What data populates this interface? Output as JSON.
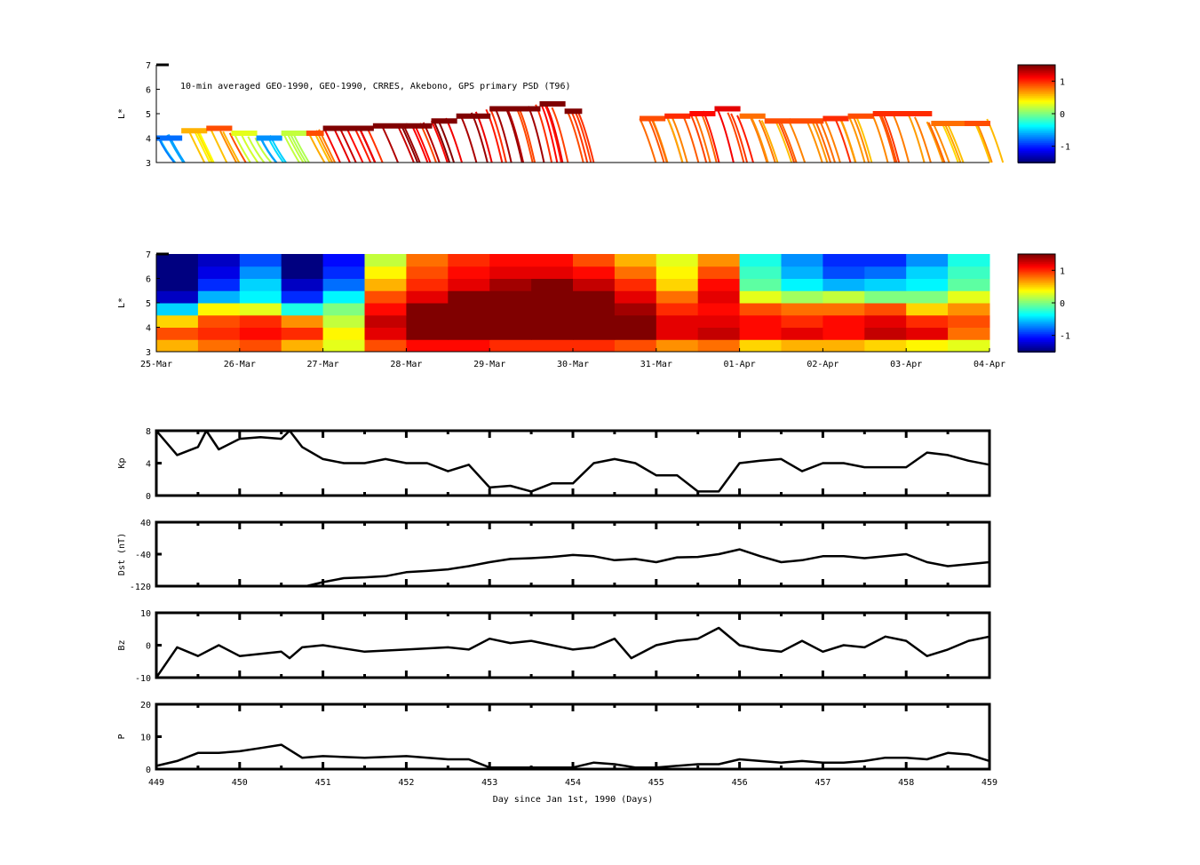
{
  "chart_data": [
    {
      "type": "scatter",
      "id": "psd-obs",
      "title": "10-min averaged GEO-1990, GEO-1990, CRRES, Akebono, GPS  primary PSD (T96)",
      "ylabel": "L*",
      "ylim": [
        3,
        7
      ],
      "yticks": [
        "3",
        "4",
        "5",
        "6",
        "7"
      ],
      "xlim": [
        449,
        459
      ],
      "trace": [
        [
          449.0,
          4.0,
          -0.8
        ],
        [
          449.3,
          4.3,
          0.6
        ],
        [
          449.6,
          4.4,
          0.9
        ],
        [
          449.9,
          4.2,
          0.3
        ],
        [
          450.2,
          4.0,
          -0.7
        ],
        [
          450.5,
          4.2,
          0.2
        ],
        [
          450.8,
          4.2,
          0.9
        ],
        [
          451.0,
          4.4,
          1.5
        ],
        [
          451.3,
          4.4,
          1.5
        ],
        [
          451.6,
          4.5,
          1.5
        ],
        [
          452.0,
          4.5,
          1.5
        ],
        [
          452.3,
          4.7,
          1.5
        ],
        [
          452.6,
          4.9,
          1.5
        ],
        [
          453.0,
          5.2,
          1.5
        ],
        [
          453.3,
          5.2,
          1.5
        ],
        [
          453.6,
          5.4,
          1.5
        ],
        [
          453.9,
          5.1,
          1.5
        ],
        [
          454.1,
          5.1,
          1.5
        ],
        [
          454.8,
          4.8,
          0.9
        ],
        [
          455.1,
          4.9,
          1.0
        ],
        [
          455.4,
          5.0,
          1.1
        ],
        [
          455.7,
          5.2,
          1.2
        ],
        [
          456.0,
          4.9,
          0.8
        ],
        [
          456.3,
          4.7,
          0.9
        ],
        [
          456.6,
          4.7,
          0.9
        ],
        [
          457.0,
          4.8,
          1.0
        ],
        [
          457.3,
          4.9,
          0.9
        ],
        [
          457.6,
          5.0,
          1.0
        ],
        [
          458.0,
          5.0,
          1.0
        ],
        [
          458.3,
          4.6,
          0.8
        ],
        [
          458.7,
          4.6,
          0.9
        ],
        [
          459.0,
          4.8,
          0.5
        ]
      ],
      "colorbar": {
        "ticks": [
          "1",
          "0",
          "-1"
        ],
        "clim": [
          -1.5,
          1.5
        ]
      }
    },
    {
      "type": "heatmap",
      "id": "psd-reanalysis",
      "ylabel": "L*",
      "ylim": [
        3,
        7
      ],
      "yticks": [
        "3",
        "4",
        "5",
        "6",
        "7"
      ],
      "xtick_labels": [
        "25-Mar",
        "26-Mar",
        "27-Mar",
        "28-Mar",
        "29-Mar",
        "30-Mar",
        "31-Mar",
        "01-Apr",
        "02-Apr",
        "03-Apr",
        "04-Apr"
      ],
      "x_bins_per_day": 2,
      "l_bins": [
        3.25,
        3.75,
        4.25,
        4.75,
        5.25,
        5.75,
        6.25,
        6.75
      ],
      "values": [
        [
          0.6,
          0.8,
          0.9,
          0.6,
          0.3,
          0.9,
          1.1,
          1.1,
          1.0,
          1.0,
          1.0,
          0.9,
          0.7,
          0.8,
          0.5,
          0.6,
          0.6,
          0.5,
          0.4,
          0.3
        ],
        [
          0.9,
          1.0,
          1.1,
          1.0,
          0.4,
          1.2,
          1.5,
          1.5,
          1.5,
          1.5,
          1.5,
          1.5,
          1.2,
          1.3,
          1.1,
          1.2,
          1.1,
          1.3,
          1.2,
          0.8
        ],
        [
          0.5,
          0.9,
          1.0,
          0.7,
          0.2,
          1.3,
          1.5,
          1.5,
          1.5,
          1.5,
          1.5,
          1.5,
          1.2,
          1.2,
          1.1,
          1.0,
          1.1,
          1.2,
          1.0,
          0.9
        ],
        [
          -0.5,
          0.4,
          0.3,
          -0.3,
          0.0,
          1.1,
          1.5,
          1.5,
          1.5,
          1.5,
          1.5,
          1.4,
          1.0,
          1.1,
          0.9,
          0.8,
          0.8,
          0.9,
          0.5,
          0.7
        ],
        [
          -1.3,
          -0.6,
          -0.4,
          -1.0,
          -0.4,
          0.9,
          1.2,
          1.5,
          1.5,
          1.5,
          1.5,
          1.2,
          0.8,
          1.2,
          0.3,
          0.1,
          0.2,
          0.0,
          0.0,
          0.3
        ],
        [
          -1.5,
          -1.0,
          -0.5,
          -1.3,
          -0.8,
          0.6,
          1.0,
          1.2,
          1.4,
          1.5,
          1.3,
          1.0,
          0.5,
          1.1,
          -0.1,
          -0.4,
          -0.6,
          -0.5,
          -0.4,
          -0.1
        ],
        [
          -1.5,
          -1.2,
          -0.7,
          -1.5,
          -1.0,
          0.4,
          0.9,
          1.1,
          1.2,
          1.2,
          1.1,
          0.8,
          0.4,
          0.9,
          -0.2,
          -0.6,
          -0.9,
          -0.8,
          -0.5,
          -0.2
        ],
        [
          -1.5,
          -1.3,
          -0.9,
          -1.5,
          -1.1,
          0.2,
          0.8,
          1.0,
          1.1,
          1.1,
          0.9,
          0.6,
          0.3,
          0.7,
          -0.3,
          -0.7,
          -1.0,
          -1.0,
          -0.7,
          -0.3
        ]
      ],
      "colorbar": {
        "ticks": [
          "1",
          "0",
          "-1"
        ],
        "clim": [
          -1.5,
          1.5
        ]
      }
    },
    {
      "type": "line",
      "id": "kp",
      "ylabel": "Kp",
      "ylim": [
        0,
        8
      ],
      "yticks": [
        "0",
        "4",
        "8"
      ],
      "x": [
        449,
        449.25,
        449.5,
        449.6,
        449.75,
        450,
        450.25,
        450.5,
        450.6,
        450.75,
        451,
        451.25,
        451.5,
        451.75,
        452,
        452.25,
        452.5,
        452.75,
        453,
        453.25,
        453.5,
        453.75,
        454,
        454.25,
        454.5,
        454.75,
        455,
        455.25,
        455.5,
        455.75,
        456,
        456.25,
        456.5,
        456.75,
        457,
        457.25,
        457.5,
        457.75,
        458,
        458.25,
        458.5,
        458.75,
        459
      ],
      "y": [
        8,
        5,
        6,
        8,
        5.7,
        7,
        7.2,
        7,
        8,
        6,
        4.5,
        4,
        4,
        4.5,
        4,
        4,
        3,
        3.8,
        1,
        1.2,
        0.5,
        1.5,
        1.5,
        4,
        4.5,
        4,
        2.5,
        2.5,
        0.5,
        0.5,
        4,
        4.3,
        4.5,
        3,
        4,
        4,
        3.5,
        3.5,
        3.5,
        5.3,
        5,
        4.3,
        3.8
      ]
    },
    {
      "type": "line",
      "id": "dst",
      "ylabel": "Dst (nT)",
      "ylim": [
        -120,
        40
      ],
      "yticks": [
        "-120",
        "-40",
        "40"
      ],
      "x": [
        449,
        450.8,
        451,
        451.25,
        451.5,
        451.75,
        452,
        452.25,
        452.5,
        452.75,
        453,
        453.25,
        453.5,
        453.75,
        454,
        454.25,
        454.5,
        454.75,
        455,
        455.25,
        455.5,
        455.75,
        456,
        456.25,
        456.5,
        456.75,
        457,
        457.25,
        457.5,
        457.75,
        458,
        458.25,
        458.5,
        458.75,
        459
      ],
      "y": [
        -120,
        -120,
        -110,
        -100,
        -98,
        -95,
        -85,
        -82,
        -78,
        -70,
        -60,
        -52,
        -50,
        -47,
        -42,
        -45,
        -55,
        -52,
        -60,
        -48,
        -47,
        -40,
        -28,
        -45,
        -60,
        -55,
        -45,
        -45,
        -50,
        -45,
        -40,
        -60,
        -70,
        -65,
        -60
      ]
    },
    {
      "type": "line",
      "id": "bz",
      "ylabel": "Bz",
      "ylim": [
        -15,
        15
      ],
      "yticks": [
        "-10",
        "0",
        "10"
      ],
      "x": [
        449,
        449.25,
        449.5,
        449.75,
        450,
        450.25,
        450.5,
        450.6,
        450.75,
        451,
        451.5,
        452,
        452.5,
        452.75,
        453,
        453.25,
        453.5,
        453.75,
        454,
        454.25,
        454.5,
        454.7,
        455,
        455.25,
        455.5,
        455.75,
        456,
        456.25,
        456.5,
        456.75,
        457,
        457.25,
        457.5,
        457.75,
        458,
        458.25,
        458.5,
        458.75,
        459
      ],
      "y": [
        -15,
        -1,
        -5,
        0,
        -5,
        -4,
        -3,
        -6,
        -1,
        0,
        -3,
        -2,
        -1,
        -2,
        3,
        1,
        2,
        0,
        -2,
        -1,
        3,
        -6,
        0,
        2,
        3,
        8,
        0,
        -2,
        -3,
        2,
        -3,
        0,
        -1,
        4,
        2,
        -5,
        -2,
        2,
        4
      ]
    },
    {
      "type": "line",
      "id": "p",
      "ylabel": "P",
      "ylim": [
        0,
        20
      ],
      "yticks": [
        "0",
        "10",
        "20"
      ],
      "x": [
        449,
        449.25,
        449.5,
        449.75,
        450,
        450.25,
        450.5,
        450.75,
        451,
        451.5,
        452,
        452.5,
        452.75,
        453,
        453.5,
        454,
        454.25,
        454.5,
        454.75,
        455,
        455.5,
        455.75,
        456,
        456.25,
        456.5,
        456.75,
        457,
        457.25,
        457.5,
        457.75,
        458,
        458.25,
        458.5,
        458.75,
        459
      ],
      "y": [
        1,
        2.5,
        5,
        5,
        5.5,
        6.5,
        7.5,
        3.5,
        4,
        3.5,
        4,
        3,
        3,
        0.5,
        0.5,
        0.5,
        2,
        1.5,
        0.5,
        0.5,
        1.5,
        1.5,
        3,
        2.5,
        2,
        2.5,
        2,
        2,
        2.5,
        3.5,
        3.5,
        3,
        5,
        4.5,
        2.5
      ],
      "xlabel": "Day since Jan 1st, 1990 (Days)",
      "xtick_labels": [
        "449",
        "450",
        "451",
        "452",
        "453",
        "454",
        "455",
        "456",
        "457",
        "458",
        "459"
      ]
    }
  ],
  "colors": {
    "line": "#000000",
    "solar_wind_highlight": "#0a1a8a"
  }
}
